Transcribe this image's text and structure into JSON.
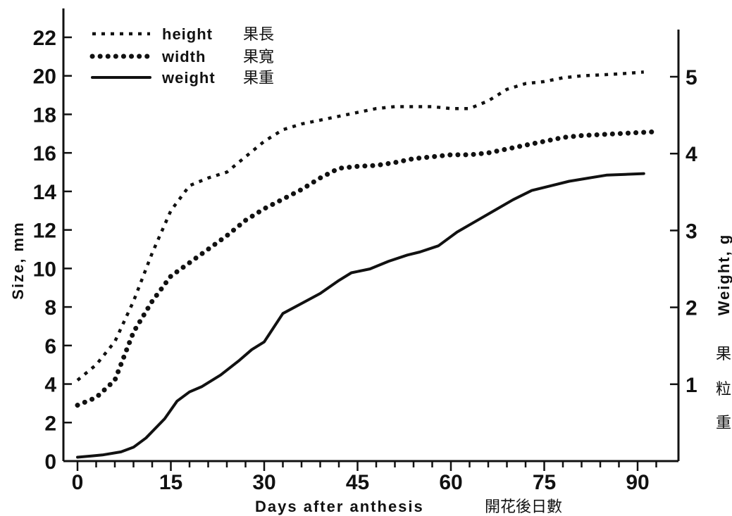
{
  "chart_data": {
    "type": "line",
    "xlabel": "Days after anthesis",
    "xlabel_cjk": "開花後日數",
    "ylabel_left": "Size, mm",
    "ylabel_right": "Weight, g",
    "ylabel_right_cjk": [
      "果",
      "粒",
      "重"
    ],
    "xlim": [
      -2,
      97
    ],
    "ylim_left": [
      0,
      23
    ],
    "ylim_right": [
      0,
      5.6
    ],
    "x_ticks": [
      0,
      15,
      30,
      45,
      60,
      75,
      90
    ],
    "y_left_ticks": [
      0,
      2,
      4,
      6,
      8,
      10,
      12,
      14,
      16,
      18,
      20,
      22
    ],
    "y_right_ticks": [
      1,
      2,
      3,
      4,
      5
    ],
    "grid": false,
    "legend_position": "top-left",
    "series": [
      {
        "name": "height",
        "name_cjk": "果長",
        "axis": "left",
        "style": "dotted-small",
        "x": [
          0,
          3,
          6,
          9,
          12,
          15,
          18,
          21,
          24,
          27,
          30,
          33,
          36,
          39,
          42,
          45,
          48,
          51,
          54,
          57,
          60,
          63,
          66,
          69,
          72,
          75,
          78,
          81,
          84,
          87,
          91
        ],
        "y": [
          4.2,
          5.0,
          6.2,
          8.3,
          10.8,
          13.0,
          14.3,
          14.7,
          15.0,
          15.8,
          16.6,
          17.2,
          17.5,
          17.7,
          17.9,
          18.1,
          18.3,
          18.4,
          18.4,
          18.4,
          18.3,
          18.3,
          18.7,
          19.3,
          19.6,
          19.7,
          19.9,
          20.0,
          20.05,
          20.1,
          20.2
        ]
      },
      {
        "name": "width",
        "name_cjk": "果寬",
        "axis": "left",
        "style": "dotted-large",
        "x": [
          0,
          3,
          6,
          9,
          12,
          15,
          18,
          21,
          24,
          27,
          30,
          33,
          36,
          39,
          42,
          45,
          48,
          51,
          54,
          57,
          60,
          63,
          66,
          69,
          72,
          75,
          78,
          81,
          84,
          87,
          90,
          93
        ],
        "y": [
          2.9,
          3.3,
          4.2,
          6.7,
          8.3,
          9.6,
          10.3,
          11.0,
          11.7,
          12.5,
          13.1,
          13.6,
          14.1,
          14.7,
          15.2,
          15.3,
          15.35,
          15.5,
          15.7,
          15.8,
          15.9,
          15.9,
          16.0,
          16.2,
          16.4,
          16.6,
          16.8,
          16.9,
          16.95,
          17.0,
          17.05,
          17.1
        ]
      },
      {
        "name": "weight",
        "name_cjk": "果重",
        "axis": "right",
        "style": "solid",
        "x": [
          0,
          4,
          7,
          9,
          11,
          14,
          16,
          18,
          20,
          23,
          26,
          28,
          30,
          33,
          36,
          39,
          42,
          44,
          47,
          50,
          53,
          55,
          58,
          61,
          64,
          67,
          70,
          73,
          76,
          79,
          82,
          85,
          88,
          91
        ],
        "y": [
          0.05,
          0.08,
          0.12,
          0.18,
          0.3,
          0.55,
          0.78,
          0.9,
          0.97,
          1.12,
          1.31,
          1.45,
          1.55,
          1.92,
          2.05,
          2.18,
          2.35,
          2.45,
          2.5,
          2.6,
          2.68,
          2.72,
          2.8,
          2.98,
          3.12,
          3.26,
          3.4,
          3.52,
          3.58,
          3.64,
          3.68,
          3.72,
          3.73,
          3.74
        ]
      }
    ]
  }
}
